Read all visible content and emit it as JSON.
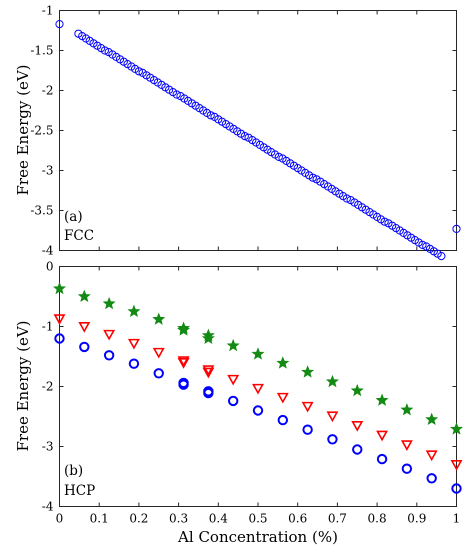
{
  "chart_data": [
    {
      "type": "scatter",
      "panel_label": "(a)",
      "panel_name": "FCC",
      "ylabel": "Free Energy (eV)",
      "xlabel": "",
      "xlim": [
        0,
        1
      ],
      "ylim": [
        -4,
        -1
      ],
      "yticks": [
        -1,
        -1.5,
        -2,
        -2.5,
        -3,
        -3.5,
        -4
      ],
      "ytick_labels": [
        "-1",
        "-1.5",
        "-2",
        "-2.5",
        "-3",
        "-3.5",
        "-4"
      ],
      "grid": false,
      "marker": "circle",
      "color": "#0000ff",
      "series": [
        {
          "x": [
            0.0,
            0.0476,
            0.0571,
            0.0667,
            0.0762,
            0.0857,
            0.0952,
            0.1048,
            0.1143,
            0.1238,
            0.1333,
            0.1429,
            0.1524,
            0.1619,
            0.1714,
            0.181,
            0.1905,
            0.2,
            0.2095,
            0.219,
            0.2286,
            0.2381,
            0.2476,
            0.2571,
            0.2667,
            0.2762,
            0.2857,
            0.2952,
            0.3048,
            0.3143,
            0.3238,
            0.3333,
            0.3429,
            0.3524,
            0.3619,
            0.3714,
            0.381,
            0.3905,
            0.4,
            0.4095,
            0.419,
            0.4286,
            0.4381,
            0.4476,
            0.4571,
            0.4667,
            0.4762,
            0.4857,
            0.4952,
            0.5048,
            0.5143,
            0.5238,
            0.5333,
            0.5429,
            0.5524,
            0.5619,
            0.5714,
            0.581,
            0.5905,
            0.6,
            0.6095,
            0.619,
            0.6286,
            0.6381,
            0.6476,
            0.6571,
            0.6667,
            0.6762,
            0.6857,
            0.6952,
            0.7048,
            0.7143,
            0.7238,
            0.7333,
            0.7429,
            0.7524,
            0.7619,
            0.7714,
            0.781,
            0.7905,
            0.8,
            0.8095,
            0.819,
            0.8286,
            0.8381,
            0.8476,
            0.8571,
            0.8667,
            0.8762,
            0.8857,
            0.8952,
            0.9048,
            0.9143,
            0.9238,
            0.9333,
            0.9429,
            0.9524,
            0.9619,
            1.0
          ],
          "y": [
            -1.17,
            -1.29,
            -1.32,
            -1.35,
            -1.38,
            -1.41,
            -1.44,
            -1.47,
            -1.5,
            -1.52,
            -1.55,
            -1.58,
            -1.61,
            -1.64,
            -1.67,
            -1.7,
            -1.73,
            -1.76,
            -1.78,
            -1.81,
            -1.84,
            -1.87,
            -1.9,
            -1.93,
            -1.96,
            -1.99,
            -2.02,
            -2.05,
            -2.07,
            -2.1,
            -2.13,
            -2.16,
            -2.19,
            -2.22,
            -2.25,
            -2.28,
            -2.31,
            -2.33,
            -2.36,
            -2.39,
            -2.42,
            -2.45,
            -2.48,
            -2.51,
            -2.54,
            -2.57,
            -2.59,
            -2.62,
            -2.65,
            -2.68,
            -2.71,
            -2.74,
            -2.77,
            -2.8,
            -2.83,
            -2.85,
            -2.88,
            -2.91,
            -2.94,
            -2.97,
            -3.0,
            -3.03,
            -3.06,
            -3.09,
            -3.11,
            -3.14,
            -3.17,
            -3.2,
            -3.23,
            -3.26,
            -3.29,
            -3.32,
            -3.35,
            -3.37,
            -3.4,
            -3.43,
            -3.46,
            -3.49,
            -3.52,
            -3.55,
            -3.58,
            -3.61,
            -3.64,
            -3.66,
            -3.69,
            -3.72,
            -3.75,
            -3.78,
            -3.81,
            -3.84,
            -3.87,
            -3.9,
            -3.93,
            -3.95,
            -3.98,
            -4.01,
            -4.04,
            -4.07,
            -3.73
          ]
        }
      ]
    },
    {
      "type": "scatter",
      "panel_label": "(b)",
      "panel_name": "HCP",
      "ylabel": "Free Energy (eV)",
      "xlabel": "Al Concentration (%)",
      "xlim": [
        0,
        1
      ],
      "ylim": [
        -4,
        0
      ],
      "xticks": [
        0,
        0.1,
        0.2,
        0.3,
        0.4,
        0.5,
        0.6,
        0.7,
        0.8,
        0.9,
        1
      ],
      "xtick_labels": [
        "0",
        "0.1",
        "0.2",
        "0.3",
        "0.4",
        "0.5",
        "0.6",
        "0.7",
        "0.8",
        "0.9",
        "1"
      ],
      "yticks": [
        0,
        -1,
        -2,
        -3,
        -4
      ],
      "ytick_labels": [
        "0",
        "-1",
        "-2",
        "-3",
        "-4"
      ],
      "grid": false,
      "series": [
        {
          "marker": "star",
          "color": "#138a13",
          "x": [
            0.0,
            0.0625,
            0.125,
            0.1875,
            0.25,
            0.3125,
            0.3125,
            0.375,
            0.375,
            0.4375,
            0.5,
            0.5625,
            0.625,
            0.6875,
            0.75,
            0.8125,
            0.875,
            0.9375,
            1.0
          ],
          "y": [
            -0.37,
            -0.5,
            -0.62,
            -0.75,
            -0.88,
            -1.03,
            -1.06,
            -1.15,
            -1.2,
            -1.32,
            -1.46,
            -1.61,
            -1.76,
            -1.92,
            -2.07,
            -2.23,
            -2.39,
            -2.55,
            -2.71
          ]
        },
        {
          "marker": "triangle-down",
          "color": "#ff0000",
          "x": [
            0.0,
            0.0625,
            0.125,
            0.1875,
            0.25,
            0.3125,
            0.3125,
            0.375,
            0.375,
            0.4375,
            0.5,
            0.5625,
            0.625,
            0.6875,
            0.75,
            0.8125,
            0.875,
            0.9375,
            1.0
          ],
          "y": [
            -0.87,
            -1.0,
            -1.13,
            -1.28,
            -1.43,
            -1.57,
            -1.6,
            -1.72,
            -1.76,
            -1.88,
            -2.03,
            -2.18,
            -2.33,
            -2.49,
            -2.65,
            -2.81,
            -2.97,
            -3.14,
            -3.3
          ]
        },
        {
          "marker": "circle",
          "color": "#0000ff",
          "x": [
            0.0,
            0.0625,
            0.125,
            0.1875,
            0.25,
            0.3125,
            0.3125,
            0.375,
            0.375,
            0.4375,
            0.5,
            0.5625,
            0.625,
            0.6875,
            0.75,
            0.8125,
            0.875,
            0.9375,
            1.0
          ],
          "y": [
            -1.2,
            -1.34,
            -1.48,
            -1.62,
            -1.78,
            -1.94,
            -1.97,
            -2.08,
            -2.11,
            -2.24,
            -2.4,
            -2.56,
            -2.72,
            -2.88,
            -3.05,
            -3.21,
            -3.37,
            -3.53,
            -3.7
          ]
        }
      ]
    }
  ]
}
